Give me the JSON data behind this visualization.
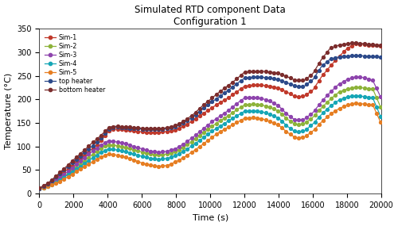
{
  "title_line1": "Simulated RTD component Data",
  "title_line2": "Configuration 1",
  "xlabel": "Time (s)",
  "ylabel": "Temperature (°C)",
  "xlim": [
    0,
    20000
  ],
  "ylim": [
    0,
    350
  ],
  "xticks": [
    0,
    2000,
    4000,
    6000,
    8000,
    10000,
    12000,
    14000,
    16000,
    18000,
    20000
  ],
  "yticks": [
    0,
    50,
    100,
    150,
    200,
    250,
    300,
    350
  ],
  "colors": {
    "Sim-1": "#c0392b",
    "Sim-2": "#8db33a",
    "Sim-3": "#8e44ad",
    "Sim-4": "#16a6b6",
    "Sim-5": "#e67e22",
    "top heater": "#2c4a8a",
    "bottom heater": "#7b2d2d"
  },
  "background_color": "#ffffff"
}
